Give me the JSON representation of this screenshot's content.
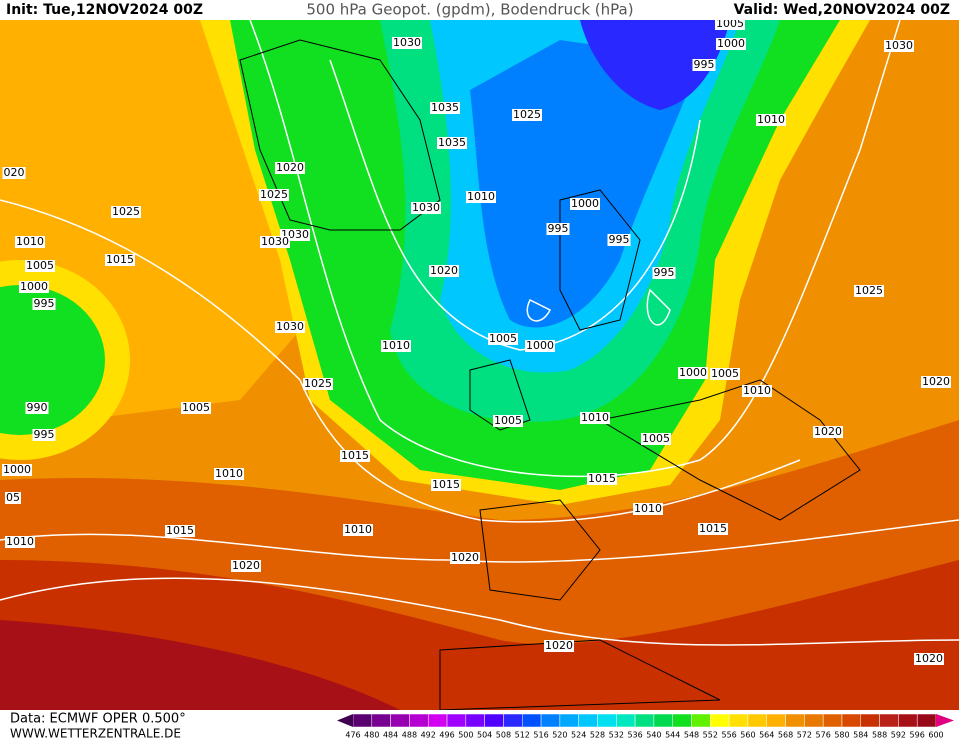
{
  "header": {
    "init": "Init: Tue,12NOV2024 00Z",
    "title": "500 hPa Geopot. (gpdm), Bodendruck (hPa)",
    "valid": "Valid: Wed,20NOV2024 00Z"
  },
  "footer": {
    "data": "Data: ECMWF OPER 0.500°",
    "site": "WWW.WETTERZENTRALE.DE"
  },
  "isobar_labels": [
    "1030",
    "1005",
    "1000",
    "995",
    "1030",
    "1035",
    "1025",
    "1010",
    "1035",
    "1020",
    "020",
    "1025",
    "1010",
    "1000",
    "1030",
    "1025",
    "995",
    "995",
    "1030",
    "1030",
    "1010",
    "1015",
    "1005",
    "1020",
    "995",
    "1000",
    "1025",
    "995",
    "1030",
    "1005",
    "1000",
    "1010",
    "1000",
    "1005",
    "1025",
    "1020",
    "1010",
    "1005",
    "990",
    "1005",
    "1010",
    "995",
    "1020",
    "1005",
    "1015",
    "1000",
    "1010",
    "1015",
    "1015",
    "05",
    "1010",
    "1015",
    "1010",
    "1015",
    "1010",
    "1020",
    "1020",
    "1020",
    "1020"
  ],
  "colorbar": {
    "ticks": [
      476,
      480,
      484,
      488,
      492,
      496,
      500,
      504,
      508,
      512,
      516,
      520,
      524,
      528,
      532,
      536,
      540,
      544,
      548,
      552,
      556,
      560,
      564,
      568,
      572,
      576,
      580,
      584,
      588,
      592,
      596,
      600
    ],
    "colors": [
      "#5a0070",
      "#780090",
      "#9600b0",
      "#b400d0",
      "#d200f0",
      "#a000ff",
      "#7800ff",
      "#5000ff",
      "#2828ff",
      "#0050ff",
      "#0080ff",
      "#00a8ff",
      "#00c8ff",
      "#00e0f0",
      "#00e8c0",
      "#00e080",
      "#00d850",
      "#10e020",
      "#60f000",
      "#ffff00",
      "#ffe000",
      "#ffc800",
      "#ffb000",
      "#f09000",
      "#e87800",
      "#e06000",
      "#d84800",
      "#c83000",
      "#b82018",
      "#a81018",
      "#980818"
    ],
    "under": "#400050",
    "over": "#e00080"
  }
}
